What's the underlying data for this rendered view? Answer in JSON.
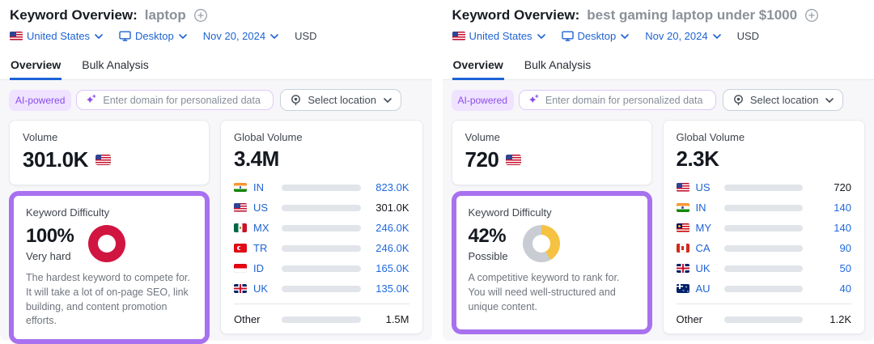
{
  "panels": [
    {
      "header": {
        "title": "Keyword Overview:",
        "keyword": "laptop"
      },
      "filters": {
        "country": "United States",
        "country_flag": "us",
        "device": "Desktop",
        "date": "Nov 20, 2024",
        "currency": "USD"
      },
      "tabs": [
        {
          "label": "Overview",
          "active": true
        },
        {
          "label": "Bulk Analysis",
          "active": false
        }
      ],
      "ai_bar": {
        "badge": "AI-powered",
        "placeholder": "Enter domain for personalized data",
        "location_button": "Select location"
      },
      "volume": {
        "label": "Volume",
        "value": "301.0K",
        "flag": "us"
      },
      "difficulty": {
        "label": "Keyword Difficulty",
        "percent": "100%",
        "pct": 100,
        "color": "#d11541",
        "level": "Very hard",
        "description": "The hardest keyword to compete for. It will take a lot of on-page SEO, link building, and content promotion efforts."
      },
      "global_volume": {
        "label": "Global Volume",
        "total": "3.4M",
        "rows": [
          {
            "flag": "in",
            "code": "IN",
            "value": "823.0K",
            "bar_pct": 25,
            "is_dark": false,
            "value_link": true
          },
          {
            "flag": "us",
            "code": "US",
            "value": "301.0K",
            "bar_pct": 9,
            "is_dark": true,
            "value_link": false
          },
          {
            "flag": "mx",
            "code": "MX",
            "value": "246.0K",
            "bar_pct": 7.2,
            "is_dark": false,
            "value_link": true
          },
          {
            "flag": "tr",
            "code": "TR",
            "value": "246.0K",
            "bar_pct": 7.2,
            "is_dark": false,
            "value_link": true
          },
          {
            "flag": "id",
            "code": "ID",
            "value": "165.0K",
            "bar_pct": 4.8,
            "is_dark": false,
            "value_link": true
          },
          {
            "flag": "uk",
            "code": "UK",
            "value": "135.0K",
            "bar_pct": 4,
            "is_dark": false,
            "value_link": true
          }
        ],
        "other": {
          "label": "Other",
          "value": "1.5M",
          "bar_pct": 44
        }
      }
    },
    {
      "header": {
        "title": "Keyword Overview:",
        "keyword": "best gaming laptop under $1000"
      },
      "filters": {
        "country": "United States",
        "country_flag": "us",
        "device": "Desktop",
        "date": "Nov 20, 2024",
        "currency": "USD"
      },
      "tabs": [
        {
          "label": "Overview",
          "active": true
        },
        {
          "label": "Bulk Analysis",
          "active": false
        }
      ],
      "ai_bar": {
        "badge": "AI-powered",
        "placeholder": "Enter domain for personalized data",
        "location_button": "Select location"
      },
      "volume": {
        "label": "Volume",
        "value": "720",
        "flag": "us"
      },
      "difficulty": {
        "label": "Keyword Difficulty",
        "percent": "42%",
        "pct": 42,
        "color": "#f5c242",
        "level": "Possible",
        "description": "A competitive keyword to rank for. You will need well-structured and unique content."
      },
      "global_volume": {
        "label": "Global Volume",
        "total": "2.3K",
        "rows": [
          {
            "flag": "us",
            "code": "US",
            "value": "720",
            "bar_pct": 30,
            "is_dark": true,
            "value_link": false
          },
          {
            "flag": "in",
            "code": "IN",
            "value": "140",
            "bar_pct": 6,
            "is_dark": false,
            "value_link": true
          },
          {
            "flag": "my",
            "code": "MY",
            "value": "140",
            "bar_pct": 6,
            "is_dark": false,
            "value_link": true
          },
          {
            "flag": "ca",
            "code": "CA",
            "value": "90",
            "bar_pct": 4,
            "is_dark": false,
            "value_link": true
          },
          {
            "flag": "uk",
            "code": "UK",
            "value": "50",
            "bar_pct": 2.5,
            "is_dark": false,
            "value_link": true
          },
          {
            "flag": "au",
            "code": "AU",
            "value": "40",
            "bar_pct": 2,
            "is_dark": false,
            "value_link": true
          }
        ],
        "other": {
          "label": "Other",
          "value": "1.2K",
          "bar_pct": 50
        }
      }
    }
  ],
  "colors": {
    "accent_blue": "#1d63d8",
    "bar_light": "#38b2f8",
    "bar_dark": "#0d62d9",
    "kd_border_purple": "#a871ef",
    "ai_purple": "#8b4deb",
    "donut_rest_gray": "#c9cdd3"
  }
}
